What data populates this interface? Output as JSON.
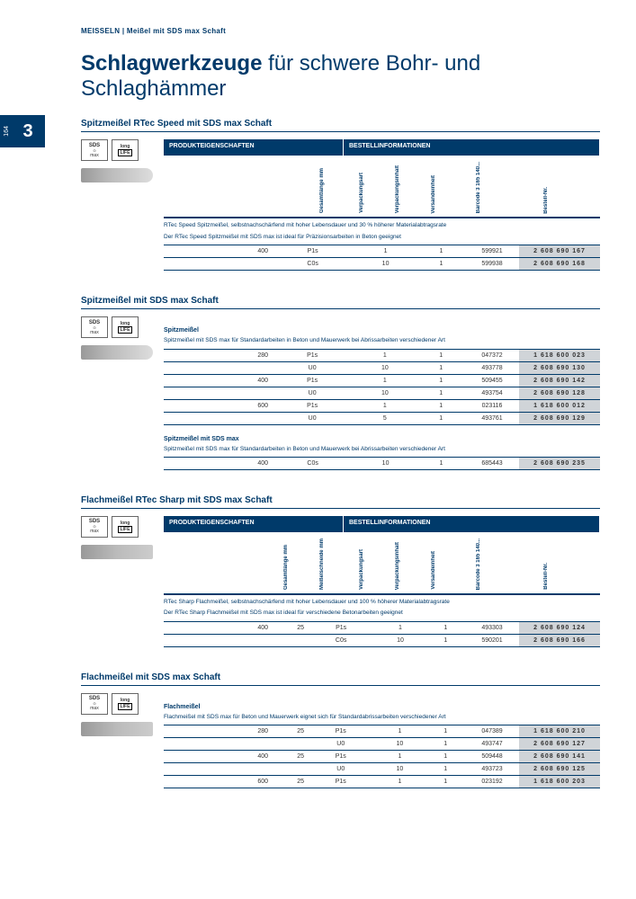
{
  "page": {
    "breadcrumb": "MEISSELN | Meißel mit SDS max Schaft",
    "number": "164",
    "chapter": "3"
  },
  "title": {
    "bold": "Schlagwerkzeuge",
    "rest": " für schwere Bohr- und Schlaghämmer"
  },
  "badges": {
    "sds_top": "SDS",
    "sds_bot": "max",
    "life_top": "long",
    "life_bot": "LIFE"
  },
  "headers": {
    "prod": "PRODUKTEIGENSCHAFTEN",
    "best": "BESTELLINFORMATIONEN"
  },
  "colLabels": {
    "gesamtlaenge": "Gesamtlänge mm",
    "meisselschneide": "Meißelschneide mm",
    "verpackungsart": "Verpackungsart",
    "verpackungsinhalt": "Verpackungsinhalt",
    "versandeinheit": "Versandeinheit",
    "barcode": "Barcode\n3 165 140...",
    "bestellnr": "Bestell-Nr."
  },
  "sections": [
    {
      "title": "Spitzmeißel RTec Speed mit SDS max Schaft",
      "tool": "point",
      "hasHeader": true,
      "hasMeissel": false,
      "desc": [
        "RTec Speed Spitzmeißel, selbstnachschärfend mit hoher Lebensdauer und 30 % höherer Materialabtragsrate",
        "Der RTec Speed Spitzmeißel mit SDS max ist ideal für Präzisionsarbeiten in Beton geeignet"
      ],
      "rows": [
        {
          "len": "400",
          "m": "",
          "vp": "P1s",
          "vi": "1",
          "ve": "1",
          "bc": "599921",
          "bn": "2 608 690 167"
        },
        {
          "len": "",
          "m": "",
          "vp": "C0s",
          "vi": "10",
          "ve": "1",
          "bc": "599938",
          "bn": "2 608 690 168"
        }
      ]
    },
    {
      "title": "Spitzmeißel mit SDS max Schaft",
      "tool": "point",
      "hasHeader": false,
      "hasMeissel": false,
      "sub": "Spitzmeißel",
      "desc": [
        "Spitzmeißel mit SDS max für Standardarbeiten in Beton und Mauerwerk bei Abrissarbeiten verschiedener Art"
      ],
      "rows": [
        {
          "len": "280",
          "m": "",
          "vp": "P1s",
          "vi": "1",
          "ve": "1",
          "bc": "047372",
          "bn": "1 618 600 023"
        },
        {
          "len": "",
          "m": "",
          "vp": "U0",
          "vi": "10",
          "ve": "1",
          "bc": "493778",
          "bn": "2 608 690 130"
        },
        {
          "len": "400",
          "m": "",
          "vp": "P1s",
          "vi": "1",
          "ve": "1",
          "bc": "509455",
          "bn": "2 608 690 142"
        },
        {
          "len": "",
          "m": "",
          "vp": "U0",
          "vi": "10",
          "ve": "1",
          "bc": "493754",
          "bn": "2 608 690 128"
        },
        {
          "len": "600",
          "m": "",
          "vp": "P1s",
          "vi": "1",
          "ve": "1",
          "bc": "023116",
          "bn": "1 618 600 012"
        },
        {
          "len": "",
          "m": "",
          "vp": "U0",
          "vi": "5",
          "ve": "1",
          "bc": "493761",
          "bn": "2 608 690 129"
        }
      ],
      "sub2": "Spitzmeißel mit SDS max",
      "desc2": [
        "Spitzmeißel mit SDS max für Standardarbeiten in Beton und Mauerwerk bei Abrissarbeiten verschiedener Art"
      ],
      "rows2": [
        {
          "len": "400",
          "m": "",
          "vp": "C0s",
          "vi": "10",
          "ve": "1",
          "bc": "685443",
          "bn": "2 608 690 235"
        }
      ]
    },
    {
      "title": "Flachmeißel RTec Sharp mit SDS max Schaft",
      "tool": "flat",
      "hasHeader": true,
      "hasMeissel": true,
      "desc": [
        "RTec Sharp Flachmeißel, selbstnachschärfend mit hoher Lebensdauer und 100 % höherer Materialabtragsrate",
        "Der RTec Sharp Flachmeißel mit SDS max ist ideal für verschiedene Betonarbeiten geeignet"
      ],
      "rows": [
        {
          "len": "400",
          "m": "25",
          "vp": "P1s",
          "vi": "1",
          "ve": "1",
          "bc": "493303",
          "bn": "2 608 690 124"
        },
        {
          "len": "",
          "m": "",
          "vp": "C0s",
          "vi": "10",
          "ve": "1",
          "bc": "590201",
          "bn": "2 608 690 166"
        }
      ]
    },
    {
      "title": "Flachmeißel mit SDS max Schaft",
      "tool": "flat",
      "hasHeader": false,
      "hasMeissel": true,
      "sub": "Flachmeißel",
      "desc": [
        "Flachmeißel mit SDS max für Beton und Mauerwerk eignet sich für Standardabrissarbeiten verschiedener Art"
      ],
      "rows": [
        {
          "len": "280",
          "m": "25",
          "vp": "P1s",
          "vi": "1",
          "ve": "1",
          "bc": "047389",
          "bn": "1 618 600 210"
        },
        {
          "len": "",
          "m": "",
          "vp": "U0",
          "vi": "10",
          "ve": "1",
          "bc": "493747",
          "bn": "2 608 690 127"
        },
        {
          "len": "400",
          "m": "25",
          "vp": "P1s",
          "vi": "1",
          "ve": "1",
          "bc": "509448",
          "bn": "2 608 690 141"
        },
        {
          "len": "",
          "m": "",
          "vp": "U0",
          "vi": "10",
          "ve": "1",
          "bc": "493723",
          "bn": "2 608 690 125"
        },
        {
          "len": "600",
          "m": "25",
          "vp": "P1s",
          "vi": "1",
          "ve": "1",
          "bc": "023192",
          "bn": "1 618 600 203"
        }
      ]
    }
  ]
}
